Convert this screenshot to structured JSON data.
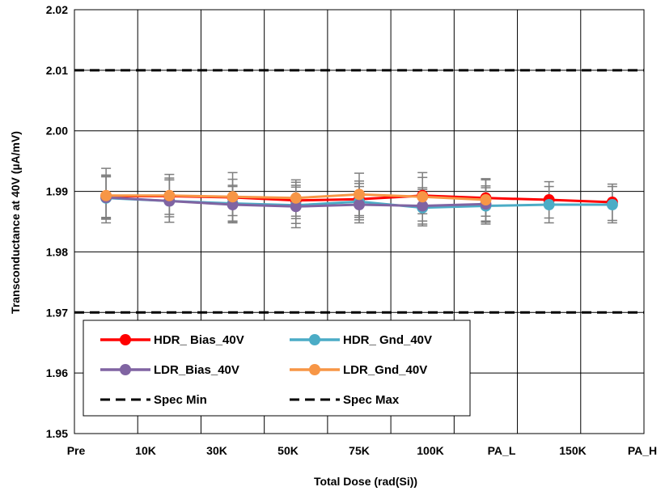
{
  "chart_data": {
    "type": "line",
    "title": "",
    "xlabel": "Total Dose (rad(Si))",
    "ylabel": "Transconductance at 40V (µA/mV)",
    "categories": [
      "Pre",
      "10K",
      "30K",
      "50K",
      "75K",
      "100K",
      "PA_L",
      "150K",
      "PA_H"
    ],
    "ylim": [
      1.95,
      2.02
    ],
    "yticks": [
      "1.95",
      "1.96",
      "1.97",
      "1.98",
      "1.99",
      "2.00",
      "2.01",
      "2.02"
    ],
    "grid": true,
    "legend_position": "lower-left",
    "series": [
      {
        "name": "HDR_ Bias_40V",
        "color": "#ff0000",
        "marker": "circle",
        "values": [
          1.9892,
          1.9892,
          1.989,
          1.9885,
          1.9887,
          1.9893,
          1.9889,
          1.9886,
          1.9882
        ],
        "err": [
          0.0035,
          0.003,
          0.003,
          0.003,
          0.003,
          0.003,
          0.003,
          0.003,
          0.003
        ]
      },
      {
        "name": "HDR_ Gnd_40V",
        "color": "#4bacc6",
        "marker": "circle",
        "values": [
          1.9889,
          1.9884,
          1.988,
          1.9877,
          1.9883,
          1.9873,
          1.9876,
          1.9878,
          1.9878
        ],
        "err": [
          0.0035,
          0.0035,
          0.003,
          0.003,
          0.003,
          0.003,
          0.003,
          0.003,
          0.003
        ]
      },
      {
        "name": "LDR_Bias_40V",
        "color": "#8064a2",
        "marker": "circle",
        "values": [
          1.989,
          1.9884,
          1.9878,
          1.9875,
          1.9878,
          1.9876,
          1.9879,
          null,
          null
        ],
        "err": [
          0.0035,
          0.0035,
          0.003,
          0.0035,
          0.003,
          0.003,
          0.003,
          null,
          null
        ]
      },
      {
        "name": "LDR_Gnd_40V",
        "color": "#f79646",
        "marker": "circle",
        "values": [
          1.9893,
          1.9893,
          1.9891,
          1.9889,
          1.9895,
          1.9891,
          1.9886,
          null,
          null
        ],
        "err": [
          0.0045,
          0.0035,
          0.004,
          0.003,
          0.0035,
          0.004,
          0.0035,
          null,
          null
        ]
      }
    ],
    "spec_lines": [
      {
        "name": "Spec Min",
        "value": 1.97,
        "color": "#000000",
        "dash": true
      },
      {
        "name": "Spec Max",
        "value": 2.01,
        "color": "#000000",
        "dash": true
      }
    ]
  },
  "legend": {
    "items": [
      {
        "label": "HDR_ Bias_40V",
        "color": "#ff0000",
        "kind": "marker"
      },
      {
        "label": "HDR_ Gnd_40V",
        "color": "#4bacc6",
        "kind": "marker"
      },
      {
        "label": "LDR_Bias_40V",
        "color": "#8064a2",
        "kind": "marker"
      },
      {
        "label": "LDR_Gnd_40V",
        "color": "#f79646",
        "kind": "marker"
      },
      {
        "label": "Spec Min",
        "color": "#000000",
        "kind": "dash"
      },
      {
        "label": "Spec Max",
        "color": "#000000",
        "kind": "dash"
      }
    ]
  },
  "colors": {
    "errorbar": "#7f7f7f",
    "grid": "#000000"
  }
}
